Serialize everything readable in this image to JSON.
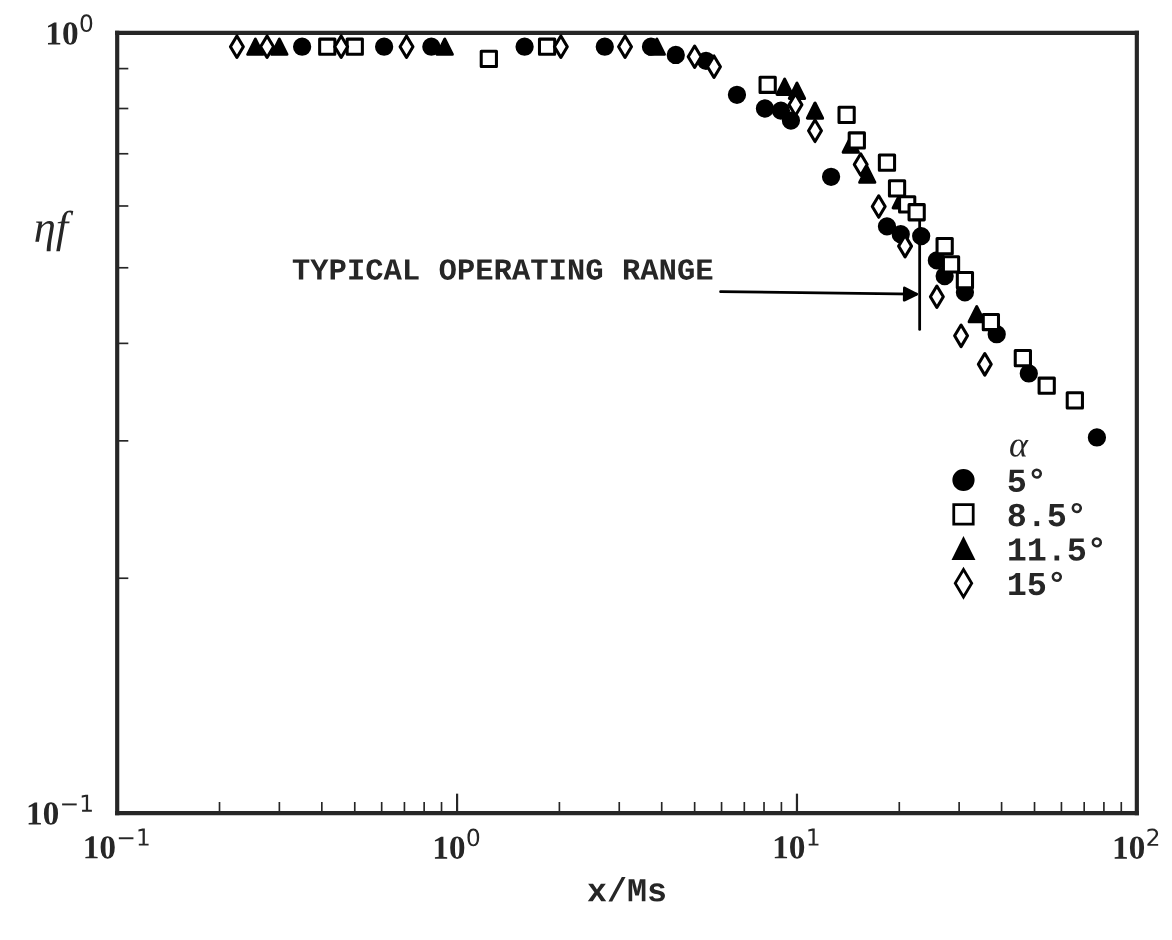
{
  "chart_data": {
    "type": "scatter",
    "xlabel": "x/Ms",
    "ylabel": "ηf",
    "legend_title": "α",
    "legend": "right",
    "grid": false,
    "log": "xy",
    "xlim": [
      0.1,
      100
    ],
    "ylim": [
      0.1,
      1
    ],
    "xticks": [
      {
        "value": 0.1,
        "label": "10$^{−1}$"
      },
      {
        "value": 1,
        "label": "10$^{0}$"
      },
      {
        "value": 10,
        "label": "10$^{1}$"
      },
      {
        "value": 100,
        "label": "10$^{2}$"
      }
    ],
    "yticks": [
      {
        "value": 0.1,
        "label": "10$^{−1}$"
      },
      {
        "value": 1,
        "label": "10$^{0}$"
      }
    ],
    "annotations": [
      "TYPICAL OPERATING RANGE"
    ],
    "series": [
      {
        "name": "5°",
        "color": "#000000",
        "marker": "circle",
        "x": [
          0.35,
          0.61,
          0.84,
          1.58,
          2.72,
          3.72,
          4.4,
          5.4,
          6.66,
          8.05,
          8.97,
          9.6,
          12.6,
          18.4,
          20.2,
          23.2,
          25.8,
          27.2,
          31.2,
          38.7,
          48.1,
          76.3
        ],
        "values": [
          0.96,
          0.96,
          0.96,
          0.96,
          0.96,
          0.96,
          0.937,
          0.921,
          0.833,
          0.8,
          0.795,
          0.772,
          0.654,
          0.565,
          0.552,
          0.549,
          0.511,
          0.488,
          0.465,
          0.411,
          0.366,
          0.303
        ]
      },
      {
        "name": "8.5°",
        "color": "#000000",
        "marker": "square",
        "x": [
          0.415,
          0.5,
          1.24,
          1.84,
          8.2,
          14.0,
          15.0,
          18.4,
          19.7,
          21.1,
          22.5,
          27.2,
          28.4,
          31.2,
          37.2,
          46.2,
          54.3,
          65.7
        ],
        "values": [
          0.96,
          0.96,
          0.926,
          0.96,
          0.858,
          0.785,
          0.728,
          0.682,
          0.632,
          0.603,
          0.589,
          0.533,
          0.505,
          0.482,
          0.426,
          0.383,
          0.353,
          0.338
        ]
      },
      {
        "name": "11.5°",
        "color": "#000000",
        "marker": "triangle",
        "x": [
          0.255,
          0.3,
          0.92,
          3.87,
          9.2,
          10,
          11.3,
          14.4,
          16.1,
          20.2,
          33.8
        ],
        "values": [
          0.96,
          0.96,
          0.96,
          0.96,
          0.853,
          0.843,
          0.795,
          0.719,
          0.658,
          0.61,
          0.436
        ]
      },
      {
        "name": "15°",
        "color": "#000000",
        "marker": "diamond",
        "x": [
          0.225,
          0.276,
          0.456,
          0.71,
          2.02,
          3.12,
          5.0,
          5.7,
          9.9,
          11.3,
          15.4,
          17.4,
          20.8,
          25.8,
          30.4,
          35.7
        ],
        "values": [
          0.96,
          0.96,
          0.96,
          0.96,
          0.96,
          0.96,
          0.932,
          0.905,
          0.809,
          0.749,
          0.678,
          0.599,
          0.533,
          0.459,
          0.409,
          0.376
        ]
      }
    ]
  }
}
